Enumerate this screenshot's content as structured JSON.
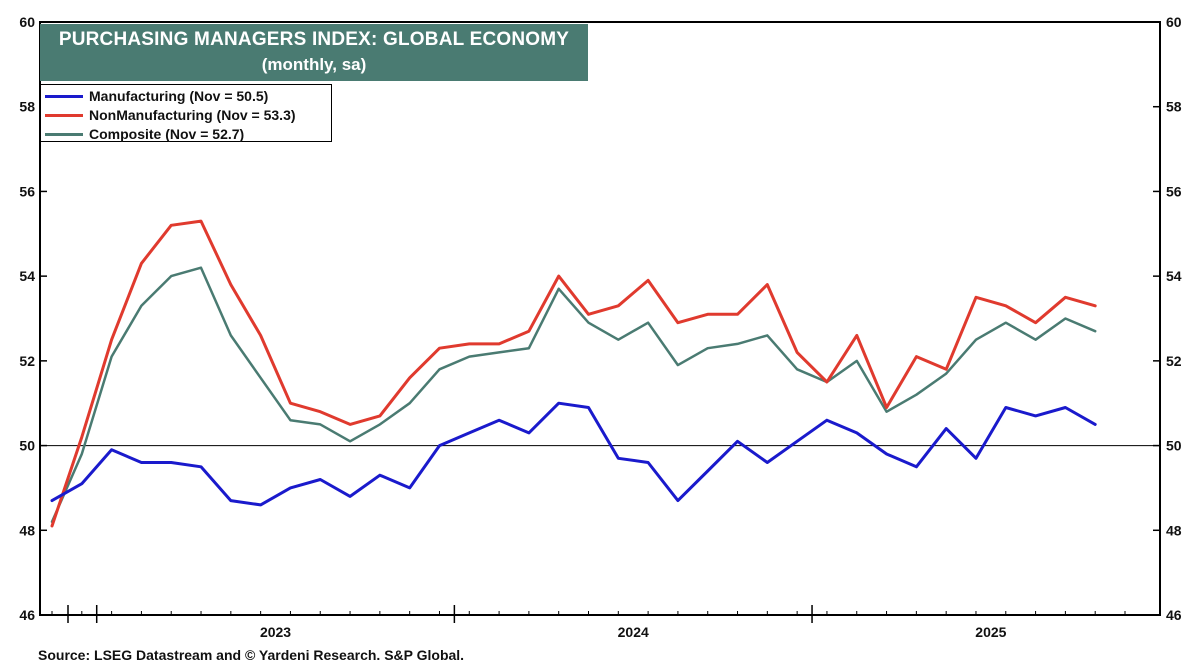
{
  "header": {
    "title": "PURCHASING MANAGERS INDEX: GLOBAL ECONOMY",
    "subtitle": "(monthly, sa)"
  },
  "legend": [
    {
      "label": "Manufacturing (Nov = 50.5)",
      "color": "#1a1acc"
    },
    {
      "label": "NonManufacturing (Nov = 53.3)",
      "color": "#e03a2e"
    },
    {
      "label": "Composite (Nov = 52.7)",
      "color": "#4a7b72"
    }
  ],
  "footer": {
    "source": "Source: LSEG Datastream and © Yardeni Research. S&P Global."
  },
  "chart_data": {
    "type": "line",
    "x": [
      "2022-11",
      "2022-12",
      "2023-01",
      "2023-02",
      "2023-03",
      "2023-04",
      "2023-05",
      "2023-06",
      "2023-07",
      "2023-08",
      "2023-09",
      "2023-10",
      "2023-11",
      "2023-12",
      "2024-01",
      "2024-02",
      "2024-03",
      "2024-04",
      "2024-05",
      "2024-06",
      "2024-07",
      "2024-08",
      "2024-09",
      "2024-10",
      "2024-11",
      "2024-12",
      "2025-01",
      "2025-02",
      "2025-03",
      "2025-04",
      "2025-05",
      "2025-06",
      "2025-07",
      "2025-08",
      "2025-09",
      "2025-10",
      "2025-11"
    ],
    "series": [
      {
        "name": "Manufacturing (Nov = 50.5)",
        "color": "#1a1acc",
        "values": [
          48.7,
          49.1,
          49.9,
          49.6,
          49.6,
          49.5,
          48.7,
          48.6,
          49.0,
          49.2,
          48.8,
          49.3,
          49.0,
          50.0,
          50.3,
          50.6,
          50.3,
          51.0,
          50.9,
          49.7,
          49.6,
          48.7,
          49.4,
          50.1,
          49.6,
          50.1,
          50.6,
          50.3,
          49.8,
          49.5,
          50.4,
          49.7,
          50.9,
          50.7,
          50.9,
          50.5,
          50.5
        ]
      },
      {
        "name": "NonManufacturing (Nov = 53.3)",
        "color": "#e03a2e",
        "values": [
          48.1,
          50.2,
          52.5,
          54.3,
          55.2,
          55.3,
          53.8,
          52.6,
          51.0,
          50.8,
          50.5,
          50.7,
          51.6,
          52.3,
          52.4,
          52.4,
          52.7,
          54.0,
          53.1,
          53.3,
          53.9,
          52.9,
          53.1,
          53.1,
          53.8,
          52.2,
          51.5,
          52.6,
          50.9,
          52.1,
          51.8,
          53.5,
          53.3,
          52.9,
          53.5,
          53.3,
          53.3
        ]
      },
      {
        "name": "Composite (Nov = 52.7)",
        "color": "#4a7b72",
        "values": [
          48.2,
          49.8,
          52.1,
          53.3,
          54.0,
          54.2,
          52.6,
          51.6,
          50.6,
          50.5,
          50.1,
          50.5,
          51.0,
          51.8,
          52.1,
          52.2,
          52.3,
          53.7,
          52.9,
          52.5,
          52.9,
          51.9,
          52.3,
          52.4,
          52.6,
          51.8,
          51.5,
          52.0,
          50.8,
          51.2,
          51.7,
          52.5,
          52.9,
          52.5,
          53.0,
          52.7,
          52.7
        ]
      }
    ],
    "ylim": [
      46,
      60
    ],
    "yticks": [
      46,
      48,
      50,
      52,
      54,
      56,
      58,
      60
    ],
    "reference_line": 50,
    "xtick_labels": [
      "2023",
      "2024",
      "2025"
    ],
    "grid": false
  }
}
